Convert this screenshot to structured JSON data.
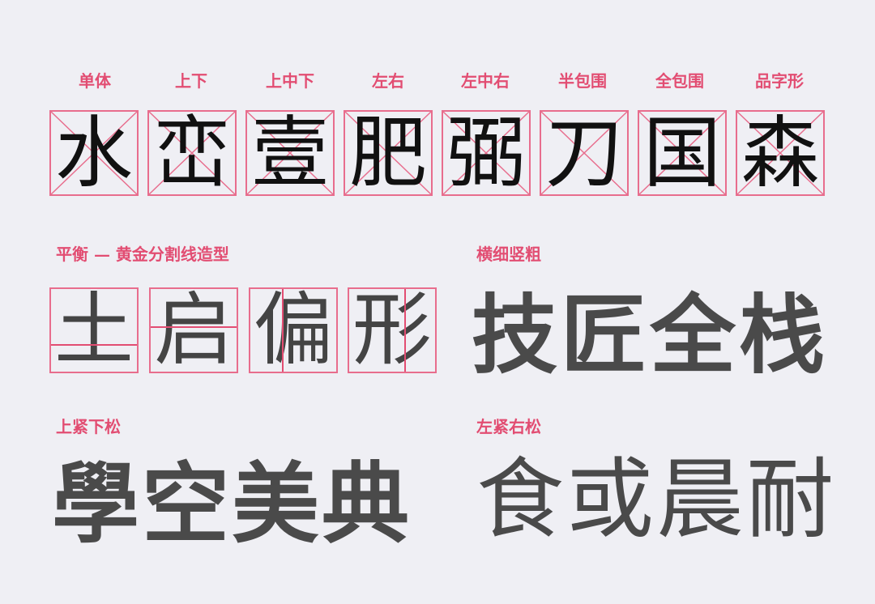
{
  "structure_labels": [
    "单体",
    "上下",
    "上中下",
    "左右",
    "左中右",
    "半包围",
    "全包围",
    "品字形"
  ],
  "structure_chars": [
    "水",
    "峦",
    "壹",
    "肥",
    "弼",
    "刀",
    "国",
    "森"
  ],
  "balance": {
    "label": "平衡 — 黄金分割线造型",
    "chars": [
      "土",
      "启",
      "偏",
      "形"
    ]
  },
  "stroke": {
    "label": "横细竖粗",
    "text": "技匠全栈"
  },
  "top_tight": {
    "label": "上紧下松",
    "text": "學空美典"
  },
  "left_tight": {
    "label": "左紧右松",
    "text": "食或晨耐"
  },
  "colors": {
    "accent": "#e24d72",
    "grid": "#e86d8d",
    "background": "#efeff4",
    "dark_text": "#111111",
    "gray_text": "#4a4a4a"
  }
}
